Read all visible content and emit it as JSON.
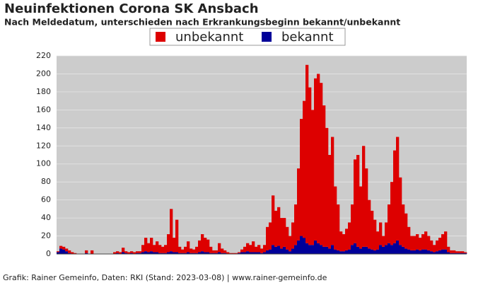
{
  "chart_data": {
    "type": "stacked-bar",
    "title": "Neuinfektionen Corona SK Ansbach",
    "subtitle": "Nach Meldedatum, unterschieden nach Erkrankungsbeginn bekannt/unbekannt",
    "footer": "Grafik: Rainer Gemeinfo, Daten: RKI (Stand: 2023-03-08) | www.rainer-gemeinfo.de",
    "categories": [
      null,
      null,
      null,
      null,
      null,
      null,
      null,
      null,
      null,
      null,
      null,
      null,
      null,
      null,
      null,
      null,
      null,
      null,
      null,
      null,
      null,
      null,
      null,
      null,
      null,
      null,
      null,
      null,
      null,
      null,
      null,
      null,
      null,
      null,
      null,
      null,
      null,
      null,
      null,
      null,
      null,
      null,
      null,
      null,
      null,
      null,
      null,
      null,
      null,
      null,
      null,
      null,
      null,
      null,
      null,
      null,
      null,
      null,
      null,
      null,
      null,
      null,
      null,
      null,
      null,
      null,
      null,
      null,
      null,
      null,
      null,
      null,
      null,
      null,
      null,
      null,
      null,
      null,
      null,
      null,
      null,
      null,
      null,
      null,
      null,
      null,
      null,
      null,
      null,
      null,
      null,
      null,
      null,
      null,
      null,
      null,
      null,
      null,
      null,
      null,
      null,
      null,
      null,
      null,
      null,
      null,
      null,
      null,
      null,
      null,
      null,
      null,
      null,
      null,
      null,
      null,
      null,
      null,
      null,
      null,
      null,
      null,
      null,
      null,
      null,
      null,
      null,
      null,
      null,
      null,
      null,
      null,
      null,
      null,
      null,
      null,
      null,
      null,
      null,
      null,
      null,
      null,
      null,
      null,
      null
    ],
    "series": [
      {
        "name": "bekannt",
        "color": "#000099",
        "values": [
          2,
          6,
          5,
          3,
          1,
          0,
          0,
          0,
          0,
          0,
          1,
          0,
          0,
          0,
          0,
          0,
          0,
          0,
          0,
          0,
          0,
          1,
          0,
          2,
          1,
          0,
          1,
          0,
          1,
          1,
          2,
          3,
          2,
          3,
          2,
          2,
          1,
          1,
          1,
          2,
          3,
          2,
          2,
          1,
          1,
          1,
          2,
          1,
          1,
          1,
          2,
          3,
          2,
          2,
          1,
          1,
          1,
          2,
          1,
          1,
          0,
          0,
          0,
          0,
          1,
          2,
          2,
          3,
          2,
          2,
          2,
          2,
          1,
          2,
          4,
          5,
          10,
          8,
          9,
          6,
          8,
          5,
          3,
          6,
          10,
          15,
          20,
          18,
          12,
          10,
          10,
          15,
          12,
          10,
          8,
          8,
          6,
          10,
          5,
          4,
          3,
          3,
          4,
          5,
          10,
          12,
          8,
          6,
          8,
          8,
          6,
          5,
          4,
          5,
          10,
          8,
          10,
          12,
          10,
          12,
          15,
          10,
          8,
          6,
          5,
          4,
          4,
          5,
          4,
          5,
          5,
          4,
          3,
          2,
          3,
          4,
          5,
          5,
          2,
          1,
          1,
          1,
          1,
          1,
          1
        ]
      },
      {
        "name": "unbekannt",
        "color": "#dd0000",
        "values": [
          1,
          3,
          3,
          3,
          3,
          2,
          1,
          0,
          0,
          0,
          3,
          0,
          4,
          0,
          0,
          0,
          0,
          0,
          0,
          0,
          2,
          2,
          2,
          5,
          2,
          2,
          2,
          2,
          2,
          2,
          8,
          15,
          10,
          15,
          8,
          12,
          9,
          7,
          9,
          20,
          47,
          16,
          36,
          7,
          4,
          7,
          12,
          5,
          4,
          7,
          13,
          19,
          16,
          14,
          7,
          3,
          3,
          10,
          5,
          3,
          2,
          1,
          1,
          1,
          1,
          3,
          6,
          9,
          8,
          12,
          6,
          8,
          5,
          8,
          26,
          30,
          55,
          40,
          43,
          34,
          32,
          25,
          17,
          29,
          45,
          80,
          130,
          152,
          198,
          175,
          150,
          180,
          188,
          180,
          157,
          132,
          104,
          120,
          70,
          51,
          22,
          19,
          24,
          30,
          45,
          93,
          102,
          69,
          112,
          87,
          54,
          43,
          34,
          20,
          25,
          12,
          25,
          43,
          70,
          103,
          115,
          75,
          47,
          39,
          25,
          16,
          16,
          17,
          14,
          17,
          20,
          16,
          12,
          8,
          12,
          14,
          17,
          20,
          6,
          3,
          3,
          2,
          2,
          2,
          1
        ]
      }
    ],
    "legend_order": [
      1,
      0
    ],
    "ylim": [
      0,
      220
    ],
    "yticks": [
      0,
      20,
      40,
      60,
      80,
      100,
      120,
      140,
      160,
      180,
      200,
      220
    ],
    "grid": true
  }
}
